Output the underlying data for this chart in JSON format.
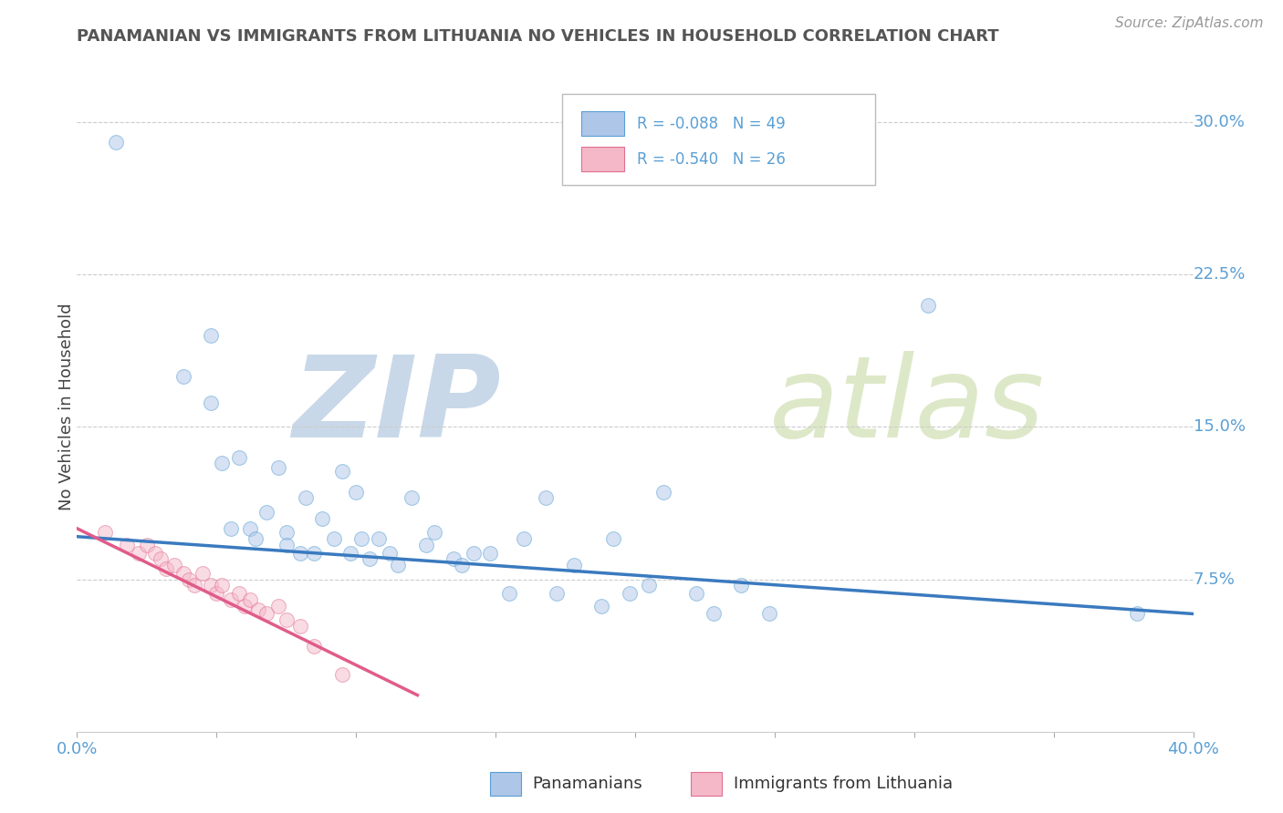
{
  "title": "PANAMANIAN VS IMMIGRANTS FROM LITHUANIA NO VEHICLES IN HOUSEHOLD CORRELATION CHART",
  "source": "Source: ZipAtlas.com",
  "ylabel": "No Vehicles in Household",
  "watermark_zip": "ZIP",
  "watermark_atlas": "atlas",
  "xlim": [
    0.0,
    0.4
  ],
  "ylim": [
    0.0,
    0.32
  ],
  "y_ticks_right": [
    0.0,
    0.075,
    0.15,
    0.225,
    0.3
  ],
  "y_tick_labels_right": [
    "",
    "7.5%",
    "15.0%",
    "22.5%",
    "30.0%"
  ],
  "legend_entries": [
    {
      "label": "R = -0.088   N = 49",
      "color": "#aec6e8",
      "line_color": "#3a7abf"
    },
    {
      "label": "R = -0.540   N = 26",
      "color": "#f5b8c8",
      "line_color": "#e05c8a"
    }
  ],
  "legend_labels_bottom": [
    "Panamanians",
    "Immigrants from Lithuania"
  ],
  "blue_scatter_x": [
    0.014,
    0.038,
    0.048,
    0.048,
    0.052,
    0.055,
    0.058,
    0.062,
    0.064,
    0.068,
    0.072,
    0.075,
    0.075,
    0.08,
    0.082,
    0.085,
    0.088,
    0.092,
    0.095,
    0.098,
    0.1,
    0.102,
    0.105,
    0.108,
    0.112,
    0.115,
    0.12,
    0.125,
    0.128,
    0.135,
    0.138,
    0.142,
    0.148,
    0.155,
    0.16,
    0.168,
    0.172,
    0.178,
    0.188,
    0.192,
    0.198,
    0.205,
    0.21,
    0.222,
    0.228,
    0.238,
    0.248,
    0.305,
    0.38
  ],
  "blue_scatter_y": [
    0.29,
    0.175,
    0.195,
    0.162,
    0.132,
    0.1,
    0.135,
    0.1,
    0.095,
    0.108,
    0.13,
    0.098,
    0.092,
    0.088,
    0.115,
    0.088,
    0.105,
    0.095,
    0.128,
    0.088,
    0.118,
    0.095,
    0.085,
    0.095,
    0.088,
    0.082,
    0.115,
    0.092,
    0.098,
    0.085,
    0.082,
    0.088,
    0.088,
    0.068,
    0.095,
    0.115,
    0.068,
    0.082,
    0.062,
    0.095,
    0.068,
    0.072,
    0.118,
    0.068,
    0.058,
    0.072,
    0.058,
    0.21,
    0.058
  ],
  "blue_line_x": [
    0.0,
    0.4
  ],
  "blue_line_y": [
    0.096,
    0.058
  ],
  "pink_scatter_x": [
    0.01,
    0.018,
    0.022,
    0.025,
    0.028,
    0.03,
    0.032,
    0.035,
    0.038,
    0.04,
    0.042,
    0.045,
    0.048,
    0.05,
    0.052,
    0.055,
    0.058,
    0.06,
    0.062,
    0.065,
    0.068,
    0.072,
    0.075,
    0.08,
    0.085,
    0.095
  ],
  "pink_scatter_y": [
    0.098,
    0.092,
    0.088,
    0.092,
    0.088,
    0.085,
    0.08,
    0.082,
    0.078,
    0.075,
    0.072,
    0.078,
    0.072,
    0.068,
    0.072,
    0.065,
    0.068,
    0.062,
    0.065,
    0.06,
    0.058,
    0.062,
    0.055,
    0.052,
    0.042,
    0.028
  ],
  "pink_line_x": [
    0.0,
    0.122
  ],
  "pink_line_y": [
    0.1,
    0.018
  ],
  "scatter_size": 130,
  "scatter_alpha": 0.5,
  "blue_color": "#aec6e8",
  "blue_edge": "#5a9fd4",
  "pink_color": "#f5b8c8",
  "pink_edge": "#e07090",
  "blue_line_color": "#3a7abf",
  "pink_line_color": "#e05c8a",
  "grid_color": "#cccccc",
  "background_color": "#ffffff",
  "title_color": "#555555",
  "axis_label_color": "#5a9fd4",
  "watermark_color": "#dde6f0"
}
